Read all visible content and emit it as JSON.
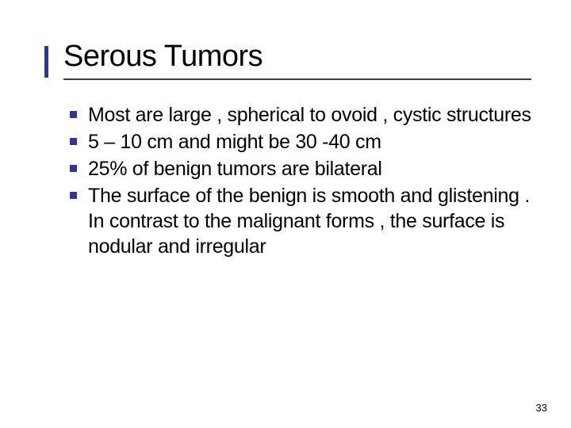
{
  "slide": {
    "title": "Serous Tumors",
    "bullets": [
      "Most are large , spherical to ovoid , cystic structures",
      "5 – 10 cm and might be 30 -40 cm",
      "25% of benign tumors are bilateral",
      "The surface of the benign is smooth and glistening . In contrast to the malignant forms , the surface is nodular and irregular"
    ],
    "page_number": "33"
  },
  "style": {
    "accent_color": "#2f3699",
    "underline_color": "#2f3699",
    "bullet_color": "#2f3699",
    "text_color": "#000000",
    "background_color": "#ffffff",
    "title_fontsize": 38,
    "body_fontsize": 25,
    "pagenum_fontsize": 13
  }
}
